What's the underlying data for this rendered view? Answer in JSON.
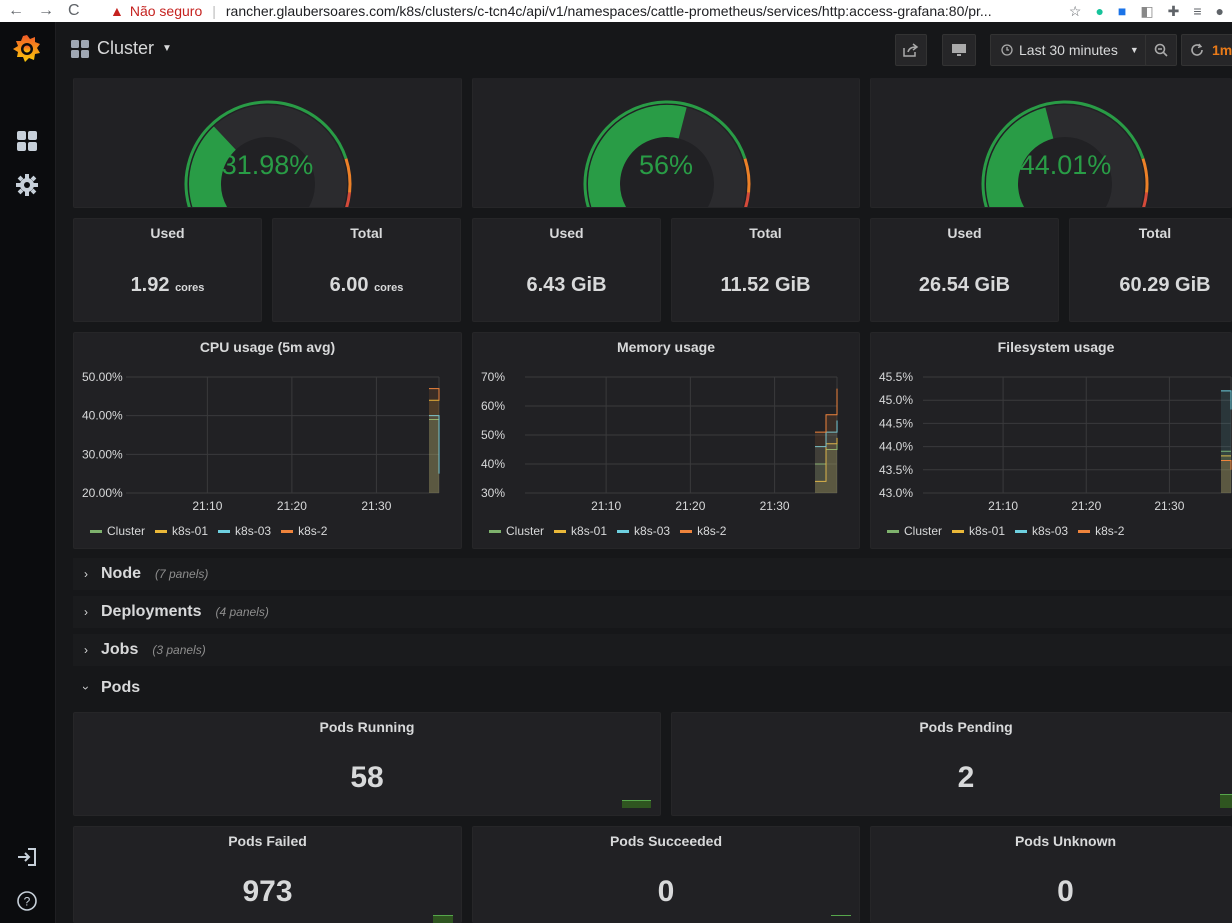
{
  "browser": {
    "nav_back": "←",
    "nav_forward": "→",
    "nav_reload": "C",
    "warning_icon": "▲",
    "insecure_label": "Não seguro",
    "url": "rancher.glaubersoares.com/k8s/clusters/c-tcn4c/api/v1/namespaces/cattle-prometheus/services/http:access-grafana:80/pr..."
  },
  "topnav": {
    "dashboard_title": "Cluster",
    "time_range": "Last 30 minutes",
    "refresh_interval": "1m"
  },
  "gauges": [
    {
      "value_text": "31.98%",
      "value": 31.98
    },
    {
      "value_text": "56%",
      "value": 56
    },
    {
      "value_text": "44.01%",
      "value": 44.01
    }
  ],
  "stats": [
    {
      "title": "Used",
      "value": "1.92",
      "unit": "cores"
    },
    {
      "title": "Total",
      "value": "6.00",
      "unit": "cores"
    },
    {
      "title": "Used",
      "value": "6.43 GiB",
      "unit": ""
    },
    {
      "title": "Total",
      "value": "11.52 GiB",
      "unit": ""
    },
    {
      "title": "Used",
      "value": "26.54 GiB",
      "unit": ""
    },
    {
      "title": "Total",
      "value": "60.29 GiB",
      "unit": ""
    }
  ],
  "chart_data": [
    {
      "type": "line",
      "title": "CPU usage (5m avg)",
      "y_ticks": [
        "50.00%",
        "40.00%",
        "30.00%",
        "20.00%"
      ],
      "ylim": [
        20,
        50
      ],
      "x_ticks": [
        "21:10",
        "21:20",
        "21:30"
      ],
      "legend": [
        "Cluster",
        "k8s-01",
        "k8s-03",
        "k8s-2"
      ],
      "series": [
        {
          "name": "Cluster",
          "color": "#7eb26d",
          "values": [
            39,
            40
          ]
        },
        {
          "name": "k8s-01",
          "color": "#eab839",
          "values": [
            44,
            45
          ]
        },
        {
          "name": "k8s-03",
          "color": "#6ed0e0",
          "values": [
            40,
            25
          ]
        },
        {
          "name": "k8s-2",
          "color": "#ef843c",
          "values": [
            47,
            44
          ]
        }
      ]
    },
    {
      "type": "line",
      "title": "Memory usage",
      "y_ticks": [
        "70%",
        "60%",
        "50%",
        "40%",
        "30%"
      ],
      "ylim": [
        30,
        70
      ],
      "x_ticks": [
        "21:10",
        "21:20",
        "21:30"
      ],
      "legend": [
        "Cluster",
        "k8s-01",
        "k8s-03",
        "k8s-2"
      ],
      "series": [
        {
          "name": "Cluster",
          "color": "#7eb26d",
          "values": [
            40,
            45,
            48
          ]
        },
        {
          "name": "k8s-01",
          "color": "#eab839",
          "values": [
            34,
            47,
            49
          ]
        },
        {
          "name": "k8s-03",
          "color": "#6ed0e0",
          "values": [
            46,
            51,
            55
          ]
        },
        {
          "name": "k8s-2",
          "color": "#ef843c",
          "values": [
            51,
            57,
            66
          ]
        }
      ]
    },
    {
      "type": "line",
      "title": "Filesystem usage",
      "y_ticks": [
        "45.5%",
        "45.0%",
        "44.5%",
        "44.0%",
        "43.5%",
        "43.0%"
      ],
      "ylim": [
        43.0,
        45.5
      ],
      "x_ticks": [
        "21:10",
        "21:20",
        "21:30"
      ],
      "legend": [
        "Cluster",
        "k8s-01",
        "k8s-03",
        "k8s-2"
      ],
      "series": [
        {
          "name": "Cluster",
          "color": "#7eb26d",
          "values": [
            43.9,
            43.9
          ]
        },
        {
          "name": "k8s-01",
          "color": "#eab839",
          "values": [
            43.8,
            43.8
          ]
        },
        {
          "name": "k8s-03",
          "color": "#6ed0e0",
          "values": [
            45.2,
            44.8
          ]
        },
        {
          "name": "k8s-2",
          "color": "#ef843c",
          "values": [
            43.7,
            43.5
          ]
        }
      ]
    }
  ],
  "rows": [
    {
      "title": "Node",
      "subtitle": "(7 panels)",
      "collapsed": true
    },
    {
      "title": "Deployments",
      "subtitle": "(4 panels)",
      "collapsed": true
    },
    {
      "title": "Jobs",
      "subtitle": "(3 panels)",
      "collapsed": true
    },
    {
      "title": "Pods",
      "subtitle": "",
      "collapsed": false
    }
  ],
  "pods": [
    {
      "title": "Pods Running",
      "value": "58"
    },
    {
      "title": "Pods Pending",
      "value": "2"
    },
    {
      "title": "Pods Failed",
      "value": "973"
    },
    {
      "title": "Pods Succeeded",
      "value": "0"
    },
    {
      "title": "Pods Unknown",
      "value": "0"
    }
  ],
  "colors": {
    "green": "#299c46",
    "orange": "#ed8128",
    "red": "#d44a3a",
    "panel_bg": "#212124",
    "page_bg": "#161719"
  }
}
